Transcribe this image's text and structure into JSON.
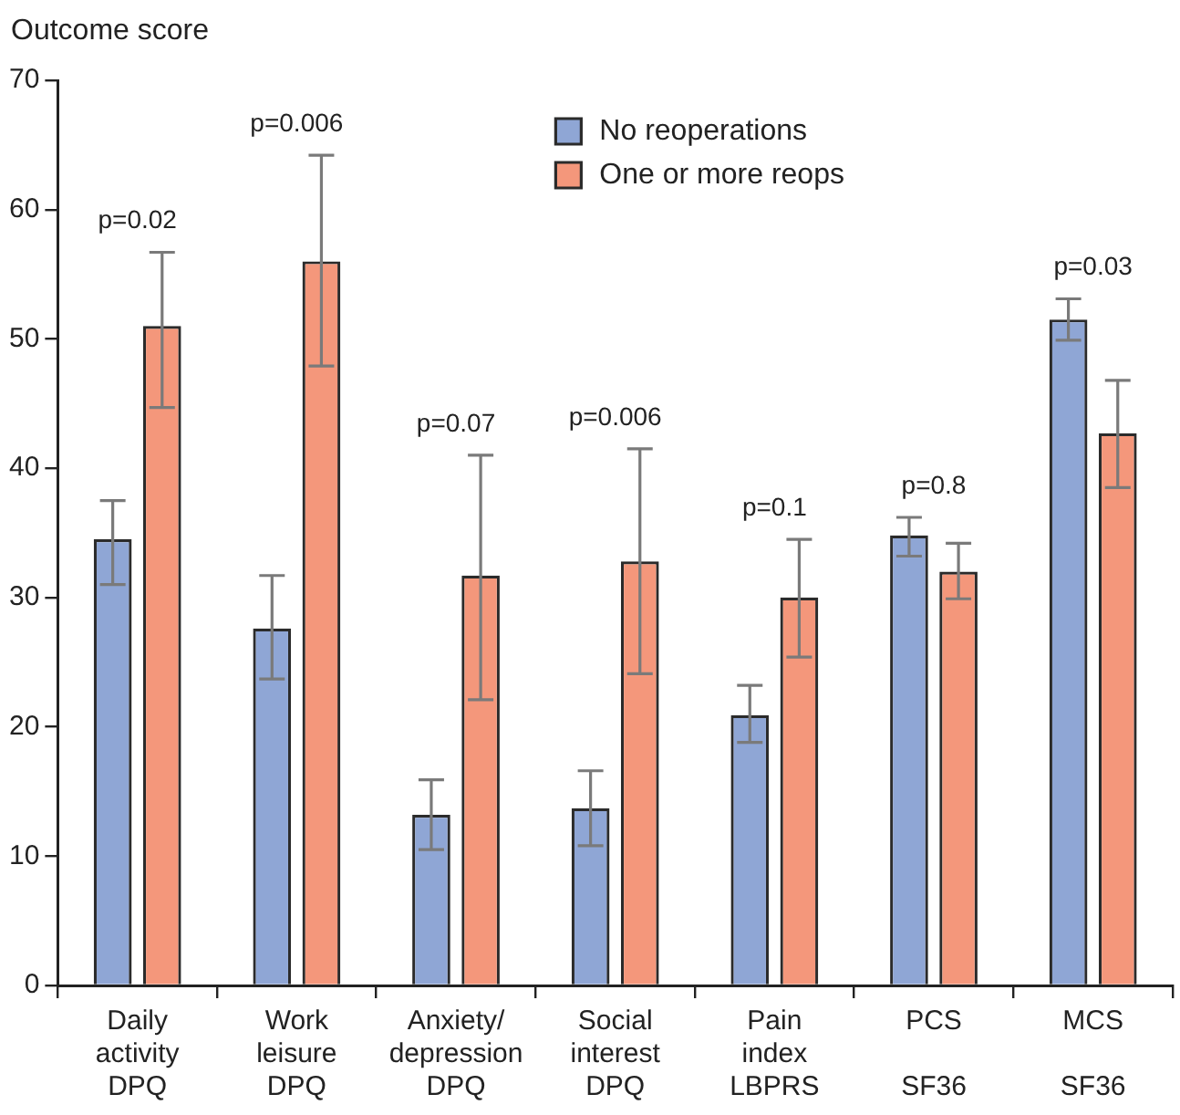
{
  "chart_data": {
    "type": "bar",
    "ylabel": "Outcome score",
    "categories": [
      "Daily\nactivity\nDPQ",
      "Work\nleisure\nDPQ",
      "Anxiety/\ndepression\nDPQ",
      "Social\ninterest\nDPQ",
      "Pain\nindex\nLBPRS",
      "PCS\n\nSF36",
      "MCS\n\nSF36"
    ],
    "series": [
      {
        "name": "No reoperations",
        "color": "#8fa6d5",
        "values": [
          34.5,
          27.6,
          13.2,
          13.7,
          20.9,
          34.8,
          51.5
        ],
        "errors": [
          [
            31,
            37.5
          ],
          [
            23.7,
            31.7
          ],
          [
            10.5,
            15.9
          ],
          [
            10.8,
            16.6
          ],
          [
            18.8,
            23.2
          ],
          [
            33.2,
            36.2
          ],
          [
            49.9,
            53.1
          ]
        ]
      },
      {
        "name": "One or more reops",
        "color": "#f4977b",
        "values": [
          51,
          56,
          31.7,
          32.8,
          30,
          32,
          42.7
        ],
        "errors": [
          [
            44.7,
            56.7
          ],
          [
            47.9,
            64.2
          ],
          [
            22.1,
            41
          ],
          [
            24.1,
            41.5
          ],
          [
            25.4,
            34.5
          ],
          [
            29.9,
            34.2
          ],
          [
            38.5,
            46.8
          ]
        ]
      }
    ],
    "ylim": [
      0,
      70
    ],
    "yticks": [
      0,
      10,
      20,
      30,
      40,
      50,
      60,
      70
    ],
    "grid": false,
    "legend": "top right",
    "annotations": [
      "p=0.02",
      "p=0.006",
      "p=0.07",
      "p=0.006",
      "p=0.1",
      "p=0.8",
      "p=0.03"
    ]
  }
}
